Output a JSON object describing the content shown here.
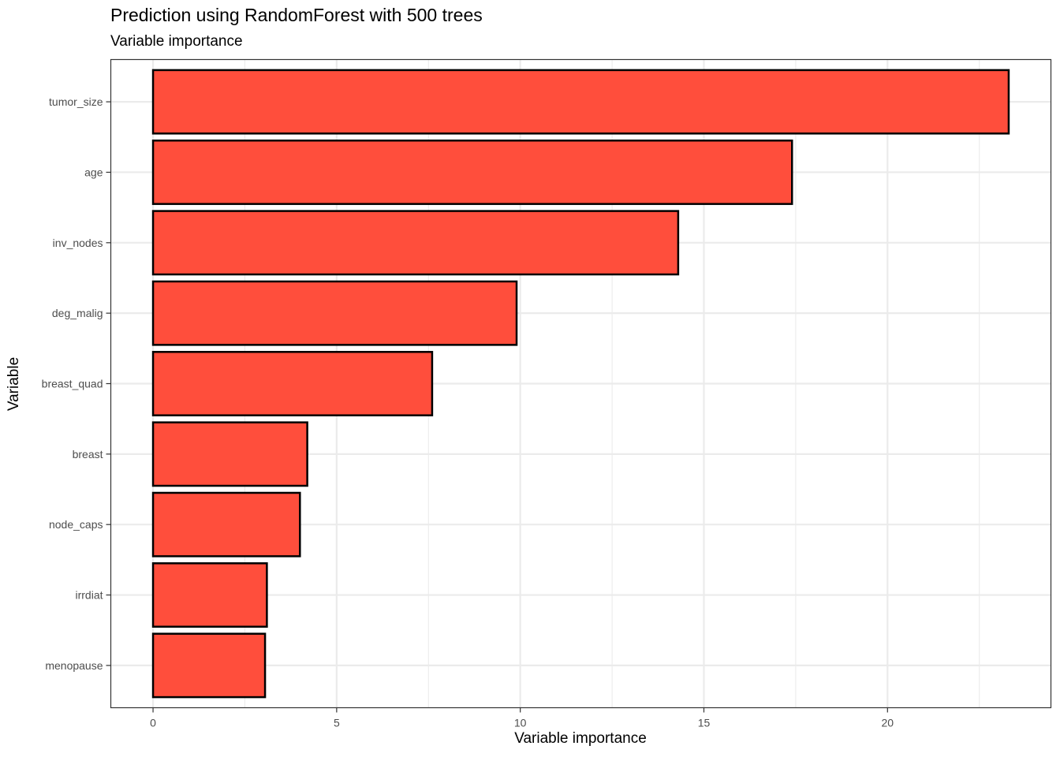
{
  "chart_data": {
    "type": "bar",
    "orientation": "horizontal",
    "title": "Prediction using RandomForest with 500 trees",
    "subtitle": "Variable importance",
    "xlabel": "Variable importance",
    "ylabel": "Variable",
    "categories": [
      "tumor_size",
      "age",
      "inv_nodes",
      "deg_malig",
      "breast_quad",
      "breast",
      "node_caps",
      "irrdiat",
      "menopause"
    ],
    "values": [
      23.3,
      17.4,
      14.3,
      9.9,
      7.6,
      4.2,
      4.0,
      3.1,
      3.05
    ],
    "xlim": [
      -1.15,
      24.45
    ],
    "x_ticks": [
      0,
      5,
      10,
      15,
      20
    ],
    "x_tick_labels": [
      "0",
      "5",
      "10",
      "15",
      "20"
    ],
    "grid": true,
    "legend": "none",
    "colors": {
      "bar_fill": "#FF4E3C",
      "bar_stroke": "#000000",
      "grid": "#EBEBEB",
      "panel_border": "#333333"
    }
  }
}
